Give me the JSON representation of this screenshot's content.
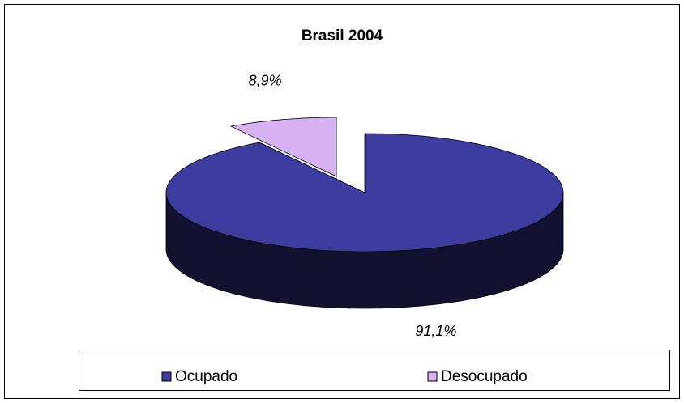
{
  "chart_data": {
    "type": "pie",
    "title": "Brasil 2004",
    "categories": [
      "Ocupado",
      "Desocupado"
    ],
    "values": [
      91.1,
      8.9
    ],
    "value_labels": [
      "91,1%",
      "8,9%"
    ],
    "colors": [
      "#3d3d9f",
      "#d7b2f2"
    ],
    "explode": [
      false,
      true
    ],
    "legend": "bottom"
  }
}
